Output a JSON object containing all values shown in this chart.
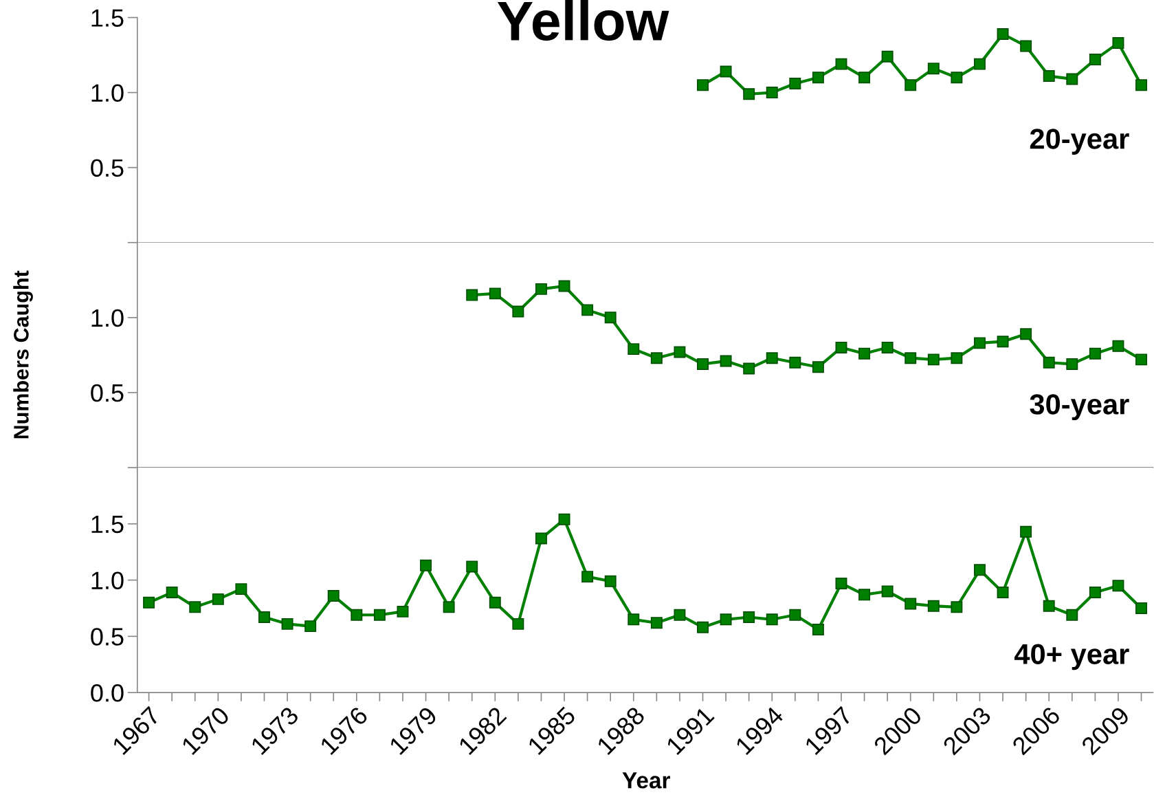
{
  "chart_data": [
    {
      "type": "line",
      "title": "Yellow",
      "annotations": [
        "20-year"
      ],
      "marker": "square",
      "line_style": "solid",
      "tick_labels": "y",
      "x": [
        1991,
        1992,
        1993,
        1994,
        1995,
        1996,
        1997,
        1998,
        1999,
        2000,
        2001,
        2002,
        2003,
        2004,
        2005,
        2006,
        2007,
        2008,
        2009,
        2010
      ],
      "series": [
        {
          "color": "#008000",
          "values": [
            1.05,
            1.14,
            0.99,
            1.0,
            1.06,
            1.1,
            1.19,
            1.1,
            1.24,
            1.05,
            1.16,
            1.1,
            1.19,
            1.39,
            1.31,
            1.11,
            1.09,
            1.22,
            1.33,
            1.05
          ]
        }
      ],
      "xlim": [
        1966.5,
        2010.5
      ],
      "ylim": [
        0,
        1.5
      ],
      "yticks": [
        {
          "value": 0,
          "label": null
        },
        {
          "value": 0.5,
          "label": "0.5"
        },
        {
          "value": 1.0,
          "label": "1.0"
        },
        {
          "value": 1.5,
          "label": "1.5"
        }
      ],
      "xticks": [
        {
          "value": 1967,
          "label": null
        },
        {
          "value": 1968,
          "label": null
        },
        {
          "value": 1969,
          "label": null
        },
        {
          "value": 1970,
          "label": null
        },
        {
          "value": 1971,
          "label": null
        },
        {
          "value": 1972,
          "label": null
        },
        {
          "value": 1973,
          "label": null
        },
        {
          "value": 1974,
          "label": null
        },
        {
          "value": 1975,
          "label": null
        },
        {
          "value": 1976,
          "label": null
        },
        {
          "value": 1977,
          "label": null
        },
        {
          "value": 1978,
          "label": null
        },
        {
          "value": 1979,
          "label": null
        },
        {
          "value": 1980,
          "label": null
        },
        {
          "value": 1981,
          "label": null
        },
        {
          "value": 1982,
          "label": null
        },
        {
          "value": 1983,
          "label": null
        },
        {
          "value": 1984,
          "label": null
        },
        {
          "value": 1985,
          "label": null
        },
        {
          "value": 1986,
          "label": null
        },
        {
          "value": 1987,
          "label": null
        },
        {
          "value": 1988,
          "label": null
        },
        {
          "value": 1989,
          "label": null
        },
        {
          "value": 1990,
          "label": null
        },
        {
          "value": 1991,
          "label": null
        },
        {
          "value": 1992,
          "label": null
        },
        {
          "value": 1993,
          "label": null
        },
        {
          "value": 1994,
          "label": null
        },
        {
          "value": 1995,
          "label": null
        },
        {
          "value": 1996,
          "label": null
        },
        {
          "value": 1997,
          "label": null
        },
        {
          "value": 1998,
          "label": null
        },
        {
          "value": 1999,
          "label": null
        },
        {
          "value": 2000,
          "label": null
        },
        {
          "value": 2001,
          "label": null
        },
        {
          "value": 2002,
          "label": null
        },
        {
          "value": 2003,
          "label": null
        },
        {
          "value": 2004,
          "label": null
        },
        {
          "value": 2005,
          "label": null
        },
        {
          "value": 2006,
          "label": null
        },
        {
          "value": 2007,
          "label": null
        },
        {
          "value": 2008,
          "label": null
        },
        {
          "value": 2009,
          "label": null
        },
        {
          "value": 2010,
          "label": null
        }
      ]
    },
    {
      "type": "line",
      "ylabel": "Numbers Caught",
      "annotations": [
        "30-year"
      ],
      "marker": "square",
      "line_style": "solid",
      "tick_labels": "y",
      "x": [
        1981,
        1982,
        1983,
        1984,
        1985,
        1986,
        1987,
        1988,
        1989,
        1990,
        1991,
        1992,
        1993,
        1994,
        1995,
        1996,
        1997,
        1998,
        1999,
        2000,
        2001,
        2002,
        2003,
        2004,
        2005,
        2006,
        2007,
        2008,
        2009,
        2010
      ],
      "series": [
        {
          "color": "#008000",
          "values": [
            1.15,
            1.16,
            1.04,
            1.19,
            1.21,
            1.05,
            1.0,
            0.79,
            0.73,
            0.77,
            0.69,
            0.71,
            0.66,
            0.73,
            0.7,
            0.67,
            0.8,
            0.76,
            0.8,
            0.73,
            0.72,
            0.73,
            0.83,
            0.84,
            0.89,
            0.7,
            0.69,
            0.76,
            0.81,
            0.72
          ]
        }
      ],
      "xlim": [
        1966.5,
        2010.5
      ],
      "ylim": [
        0,
        1.5
      ],
      "yticks": [
        {
          "value": 0,
          "label": null
        },
        {
          "value": 0.5,
          "label": "0.5"
        },
        {
          "value": 1.0,
          "label": "1.0"
        }
      ],
      "xticks": [
        {
          "value": 1967,
          "label": null
        },
        {
          "value": 1968,
          "label": null
        },
        {
          "value": 1969,
          "label": null
        },
        {
          "value": 1970,
          "label": null
        },
        {
          "value": 1971,
          "label": null
        },
        {
          "value": 1972,
          "label": null
        },
        {
          "value": 1973,
          "label": null
        },
        {
          "value": 1974,
          "label": null
        },
        {
          "value": 1975,
          "label": null
        },
        {
          "value": 1976,
          "label": null
        },
        {
          "value": 1977,
          "label": null
        },
        {
          "value": 1978,
          "label": null
        },
        {
          "value": 1979,
          "label": null
        },
        {
          "value": 1980,
          "label": null
        },
        {
          "value": 1981,
          "label": null
        },
        {
          "value": 1982,
          "label": null
        },
        {
          "value": 1983,
          "label": null
        },
        {
          "value": 1984,
          "label": null
        },
        {
          "value": 1985,
          "label": null
        },
        {
          "value": 1986,
          "label": null
        },
        {
          "value": 1987,
          "label": null
        },
        {
          "value": 1988,
          "label": null
        },
        {
          "value": 1989,
          "label": null
        },
        {
          "value": 1990,
          "label": null
        },
        {
          "value": 1991,
          "label": null
        },
        {
          "value": 1992,
          "label": null
        },
        {
          "value": 1993,
          "label": null
        },
        {
          "value": 1994,
          "label": null
        },
        {
          "value": 1995,
          "label": null
        },
        {
          "value": 1996,
          "label": null
        },
        {
          "value": 1997,
          "label": null
        },
        {
          "value": 1998,
          "label": null
        },
        {
          "value": 1999,
          "label": null
        },
        {
          "value": 2000,
          "label": null
        },
        {
          "value": 2001,
          "label": null
        },
        {
          "value": 2002,
          "label": null
        },
        {
          "value": 2003,
          "label": null
        },
        {
          "value": 2004,
          "label": null
        },
        {
          "value": 2005,
          "label": null
        },
        {
          "value": 2006,
          "label": null
        },
        {
          "value": 2007,
          "label": null
        },
        {
          "value": 2008,
          "label": null
        },
        {
          "value": 2009,
          "label": null
        },
        {
          "value": 2010,
          "label": null
        }
      ]
    },
    {
      "type": "line",
      "xlabel": "Year",
      "annotations": [
        "40+ year"
      ],
      "marker": "square",
      "line_style": "solid",
      "x": [
        1967,
        1968,
        1969,
        1970,
        1971,
        1972,
        1973,
        1974,
        1975,
        1976,
        1977,
        1978,
        1979,
        1980,
        1981,
        1982,
        1983,
        1984,
        1985,
        1986,
        1987,
        1988,
        1989,
        1990,
        1991,
        1992,
        1993,
        1994,
        1995,
        1996,
        1997,
        1998,
        1999,
        2000,
        2001,
        2002,
        2003,
        2004,
        2005,
        2006,
        2007,
        2008,
        2009,
        2010
      ],
      "series": [
        {
          "color": "#008000",
          "values": [
            0.8,
            0.89,
            0.76,
            0.83,
            0.92,
            0.67,
            0.61,
            0.59,
            0.86,
            0.69,
            0.69,
            0.72,
            1.13,
            0.76,
            1.12,
            0.8,
            0.61,
            1.37,
            1.54,
            1.03,
            0.99,
            0.65,
            0.62,
            0.69,
            0.58,
            0.65,
            0.67,
            0.65,
            0.69,
            0.56,
            0.97,
            0.87,
            0.9,
            0.79,
            0.77,
            0.76,
            1.09,
            0.89,
            1.43,
            0.77,
            0.69,
            0.89,
            0.95,
            0.75
          ]
        }
      ],
      "xlim": [
        1966.5,
        2010.5
      ],
      "ylim": [
        0,
        2.0
      ],
      "yticks": [
        {
          "value": 0,
          "label": "0.0"
        },
        {
          "value": 0.5,
          "label": "0.5"
        },
        {
          "value": 1.0,
          "label": "1.0"
        },
        {
          "value": 1.5,
          "label": "1.5"
        }
      ],
      "xticks": [
        {
          "value": 1967,
          "label": "1967"
        },
        {
          "value": 1968,
          "label": null
        },
        {
          "value": 1969,
          "label": null
        },
        {
          "value": 1970,
          "label": "1970"
        },
        {
          "value": 1971,
          "label": null
        },
        {
          "value": 1972,
          "label": null
        },
        {
          "value": 1973,
          "label": "1973"
        },
        {
          "value": 1974,
          "label": null
        },
        {
          "value": 1975,
          "label": null
        },
        {
          "value": 1976,
          "label": "1976"
        },
        {
          "value": 1977,
          "label": null
        },
        {
          "value": 1978,
          "label": null
        },
        {
          "value": 1979,
          "label": "1979"
        },
        {
          "value": 1980,
          "label": null
        },
        {
          "value": 1981,
          "label": null
        },
        {
          "value": 1982,
          "label": "1982"
        },
        {
          "value": 1983,
          "label": null
        },
        {
          "value": 1984,
          "label": null
        },
        {
          "value": 1985,
          "label": "1985"
        },
        {
          "value": 1986,
          "label": null
        },
        {
          "value": 1987,
          "label": null
        },
        {
          "value": 1988,
          "label": "1988"
        },
        {
          "value": 1989,
          "label": null
        },
        {
          "value": 1990,
          "label": null
        },
        {
          "value": 1991,
          "label": "1991"
        },
        {
          "value": 1992,
          "label": null
        },
        {
          "value": 1993,
          "label": null
        },
        {
          "value": 1994,
          "label": "1994"
        },
        {
          "value": 1995,
          "label": null
        },
        {
          "value": 1996,
          "label": null
        },
        {
          "value": 1997,
          "label": "1997"
        },
        {
          "value": 1998,
          "label": null
        },
        {
          "value": 1999,
          "label": null
        },
        {
          "value": 2000,
          "label": "2000"
        },
        {
          "value": 2001,
          "label": null
        },
        {
          "value": 2002,
          "label": null
        },
        {
          "value": 2003,
          "label": "2003"
        },
        {
          "value": 2004,
          "label": null
        },
        {
          "value": 2005,
          "label": null
        },
        {
          "value": 2006,
          "label": "2006"
        },
        {
          "value": 2007,
          "label": null
        },
        {
          "value": 2008,
          "label": null
        },
        {
          "value": 2009,
          "label": "2009"
        },
        {
          "value": 2010,
          "label": null
        }
      ]
    }
  ]
}
